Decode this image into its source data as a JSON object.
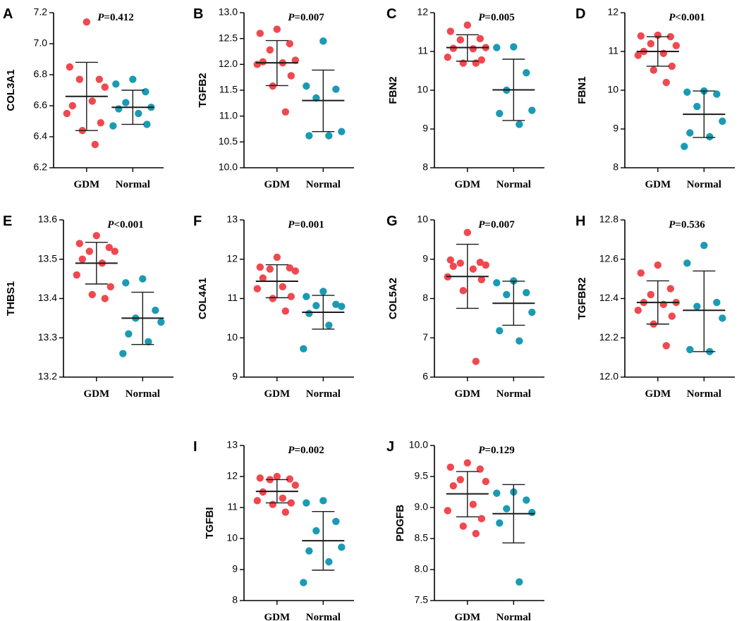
{
  "figure": {
    "group_labels": [
      "GDM",
      "Normal"
    ],
    "colors": {
      "GDM": "#f0484f",
      "Normal": "#1a9bb3",
      "axis": "#000000"
    }
  },
  "chart_data": [
    {
      "panel": "A",
      "type": "scatter",
      "ylabel": "COL3A1",
      "p_label": "P",
      "p_value": "=0.412",
      "ylim": [
        6.2,
        7.2
      ],
      "yticks": [
        "6.2",
        "6.4",
        "6.6",
        "6.8",
        "7.0",
        "7.2"
      ],
      "categories": [
        "GDM",
        "Normal"
      ],
      "series": [
        {
          "name": "GDM",
          "mean": 6.66,
          "sd_low": 6.44,
          "sd_high": 6.88,
          "values": [
            7.14,
            6.85,
            6.77,
            6.77,
            6.72,
            6.6,
            6.63,
            6.55,
            6.49,
            6.44,
            6.35
          ]
        },
        {
          "name": "Normal",
          "mean": 6.59,
          "sd_low": 6.48,
          "sd_high": 6.7,
          "values": [
            6.77,
            6.74,
            6.69,
            6.62,
            6.59,
            6.58,
            6.55,
            6.47,
            6.48
          ]
        }
      ]
    },
    {
      "panel": "B",
      "type": "scatter",
      "ylabel": "TGFB2",
      "p_label": "P",
      "p_value": "=0.007",
      "ylim": [
        10.0,
        13.0
      ],
      "yticks": [
        "10.0",
        "10.5",
        "11.0",
        "11.5",
        "12.0",
        "12.5",
        "13.0"
      ],
      "categories": [
        "GDM",
        "Normal"
      ],
      "series": [
        {
          "name": "GDM",
          "mean": 12.03,
          "sd_low": 11.59,
          "sd_high": 12.46,
          "values": [
            12.68,
            12.6,
            12.4,
            12.28,
            12.08,
            12.05,
            12.03,
            12.0,
            11.78,
            11.58,
            11.08
          ]
        },
        {
          "name": "Normal",
          "mean": 11.3,
          "sd_low": 10.7,
          "sd_high": 11.89,
          "values": [
            12.45,
            11.58,
            11.52,
            11.35,
            10.7,
            10.62,
            10.62
          ]
        }
      ]
    },
    {
      "panel": "C",
      "type": "scatter",
      "ylabel": "FBN2",
      "p_label": "P",
      "p_value": "=0.005",
      "ylim": [
        8,
        12
      ],
      "yticks": [
        "8",
        "9",
        "10",
        "11",
        "12"
      ],
      "categories": [
        "GDM",
        "Normal"
      ],
      "series": [
        {
          "name": "GDM",
          "mean": 11.1,
          "sd_low": 10.75,
          "sd_high": 11.43,
          "values": [
            11.68,
            11.52,
            11.33,
            11.3,
            11.1,
            11.08,
            11.07,
            10.85,
            10.78,
            10.7,
            10.7
          ]
        },
        {
          "name": "Normal",
          "mean": 10.01,
          "sd_low": 9.22,
          "sd_high": 10.8,
          "values": [
            11.12,
            11.1,
            10.45,
            10.0,
            9.48,
            9.4,
            9.12
          ]
        }
      ]
    },
    {
      "panel": "D",
      "type": "scatter",
      "ylabel": "FBN1",
      "p_label": "P",
      "p_value": "<0.001",
      "ylim": [
        8,
        12
      ],
      "yticks": [
        "8",
        "9",
        "10",
        "11",
        "12"
      ],
      "categories": [
        "GDM",
        "Normal"
      ],
      "series": [
        {
          "name": "GDM",
          "mean": 11.0,
          "sd_low": 10.62,
          "sd_high": 11.38,
          "values": [
            11.42,
            11.4,
            11.38,
            11.2,
            11.15,
            11.0,
            10.95,
            10.9,
            10.62,
            10.52,
            10.2
          ]
        },
        {
          "name": "Normal",
          "mean": 9.38,
          "sd_low": 8.78,
          "sd_high": 9.98,
          "values": [
            9.98,
            9.95,
            9.9,
            9.58,
            9.2,
            8.9,
            8.8,
            8.55
          ]
        }
      ]
    },
    {
      "panel": "E",
      "type": "scatter",
      "ylabel": "THBS1",
      "p_label": "P",
      "p_value": "<0.001",
      "ylim": [
        13.2,
        13.6
      ],
      "yticks": [
        "13.2",
        "13.3",
        "13.4",
        "13.5",
        "13.6"
      ],
      "categories": [
        "GDM",
        "Normal"
      ],
      "series": [
        {
          "name": "GDM",
          "mean": 13.49,
          "sd_low": 13.437,
          "sd_high": 13.543,
          "values": [
            13.56,
            13.54,
            13.53,
            13.52,
            13.52,
            13.5,
            13.49,
            13.46,
            13.43,
            13.41,
            13.4
          ]
        },
        {
          "name": "Normal",
          "mean": 13.35,
          "sd_low": 13.283,
          "sd_high": 13.416,
          "values": [
            13.45,
            13.44,
            13.37,
            13.35,
            13.34,
            13.31,
            13.29,
            13.26
          ]
        }
      ]
    },
    {
      "panel": "F",
      "type": "scatter",
      "ylabel": "COL4A1",
      "p_label": "P",
      "p_value": "=0.001",
      "ylim": [
        9,
        13
      ],
      "yticks": [
        "9",
        "10",
        "11",
        "12",
        "13"
      ],
      "categories": [
        "GDM",
        "Normal"
      ],
      "series": [
        {
          "name": "GDM",
          "mean": 11.44,
          "sd_low": 11.02,
          "sd_high": 11.86,
          "values": [
            12.05,
            11.8,
            11.78,
            11.75,
            11.7,
            11.52,
            11.3,
            11.25,
            11.05,
            11.0,
            10.68
          ]
        },
        {
          "name": "Normal",
          "mean": 10.65,
          "sd_low": 10.22,
          "sd_high": 11.08,
          "values": [
            11.18,
            11.05,
            10.85,
            10.82,
            10.8,
            10.62,
            10.32,
            9.72
          ]
        }
      ]
    },
    {
      "panel": "G",
      "type": "scatter",
      "ylabel": "COL5A2",
      "p_label": "P",
      "p_value": "=0.007",
      "ylim": [
        6,
        10
      ],
      "yticks": [
        "6",
        "7",
        "8",
        "9",
        "10"
      ],
      "categories": [
        "GDM",
        "Normal"
      ],
      "series": [
        {
          "name": "GDM",
          "mean": 8.56,
          "sd_low": 7.75,
          "sd_high": 9.38,
          "values": [
            9.68,
            8.98,
            8.92,
            8.9,
            8.85,
            8.82,
            8.75,
            8.55,
            8.48,
            8.2,
            6.4
          ]
        },
        {
          "name": "Normal",
          "mean": 7.88,
          "sd_low": 7.32,
          "sd_high": 8.44,
          "values": [
            8.45,
            8.4,
            8.15,
            8.1,
            7.65,
            7.18,
            6.92
          ]
        }
      ]
    },
    {
      "panel": "H",
      "type": "scatter",
      "ylabel": "TGFBR2",
      "p_label": "P",
      "p_value": "=0.536",
      "ylim": [
        12.0,
        12.8
      ],
      "yticks": [
        "12.0",
        "12.2",
        "12.4",
        "12.6",
        "12.8"
      ],
      "categories": [
        "GDM",
        "Normal"
      ],
      "series": [
        {
          "name": "GDM",
          "mean": 12.38,
          "sd_low": 12.27,
          "sd_high": 12.49,
          "values": [
            12.57,
            12.53,
            12.45,
            12.42,
            12.38,
            12.38,
            12.37,
            12.34,
            12.31,
            12.27,
            12.16
          ]
        },
        {
          "name": "Normal",
          "mean": 12.34,
          "sd_low": 12.13,
          "sd_high": 12.54,
          "values": [
            12.67,
            12.58,
            12.38,
            12.36,
            12.3,
            12.14,
            12.13
          ]
        }
      ]
    },
    {
      "panel": "I",
      "type": "scatter",
      "ylabel": "TGFBI",
      "p_label": "P",
      "p_value": "=0.002",
      "ylim": [
        8,
        13
      ],
      "yticks": [
        "8",
        "9",
        "10",
        "11",
        "12",
        "13"
      ],
      "categories": [
        "GDM",
        "Normal"
      ],
      "series": [
        {
          "name": "GDM",
          "mean": 11.52,
          "sd_low": 11.15,
          "sd_high": 11.9,
          "values": [
            12.0,
            11.95,
            11.92,
            11.9,
            11.72,
            11.5,
            11.3,
            11.22,
            11.15,
            11.1,
            10.85
          ]
        },
        {
          "name": "Normal",
          "mean": 9.93,
          "sd_low": 8.98,
          "sd_high": 10.87,
          "values": [
            11.22,
            11.15,
            10.55,
            10.25,
            9.72,
            9.6,
            9.25,
            8.58
          ]
        }
      ]
    },
    {
      "panel": "J",
      "type": "scatter",
      "ylabel": "PDGFB",
      "p_label": "P",
      "p_value": "=0.129",
      "ylim": [
        7.5,
        10.0
      ],
      "yticks": [
        "7.5",
        "8.0",
        "8.5",
        "9.0",
        "9.5",
        "10.0"
      ],
      "categories": [
        "GDM",
        "Normal"
      ],
      "series": [
        {
          "name": "GDM",
          "mean": 9.22,
          "sd_low": 8.85,
          "sd_high": 9.58,
          "values": [
            9.72,
            9.65,
            9.62,
            9.45,
            9.42,
            9.35,
            9.05,
            8.95,
            8.82,
            8.7,
            8.58
          ]
        },
        {
          "name": "Normal",
          "mean": 8.9,
          "sd_low": 8.43,
          "sd_high": 9.37,
          "values": [
            9.25,
            9.23,
            9.12,
            8.98,
            8.92,
            8.75,
            7.8
          ]
        }
      ]
    }
  ]
}
